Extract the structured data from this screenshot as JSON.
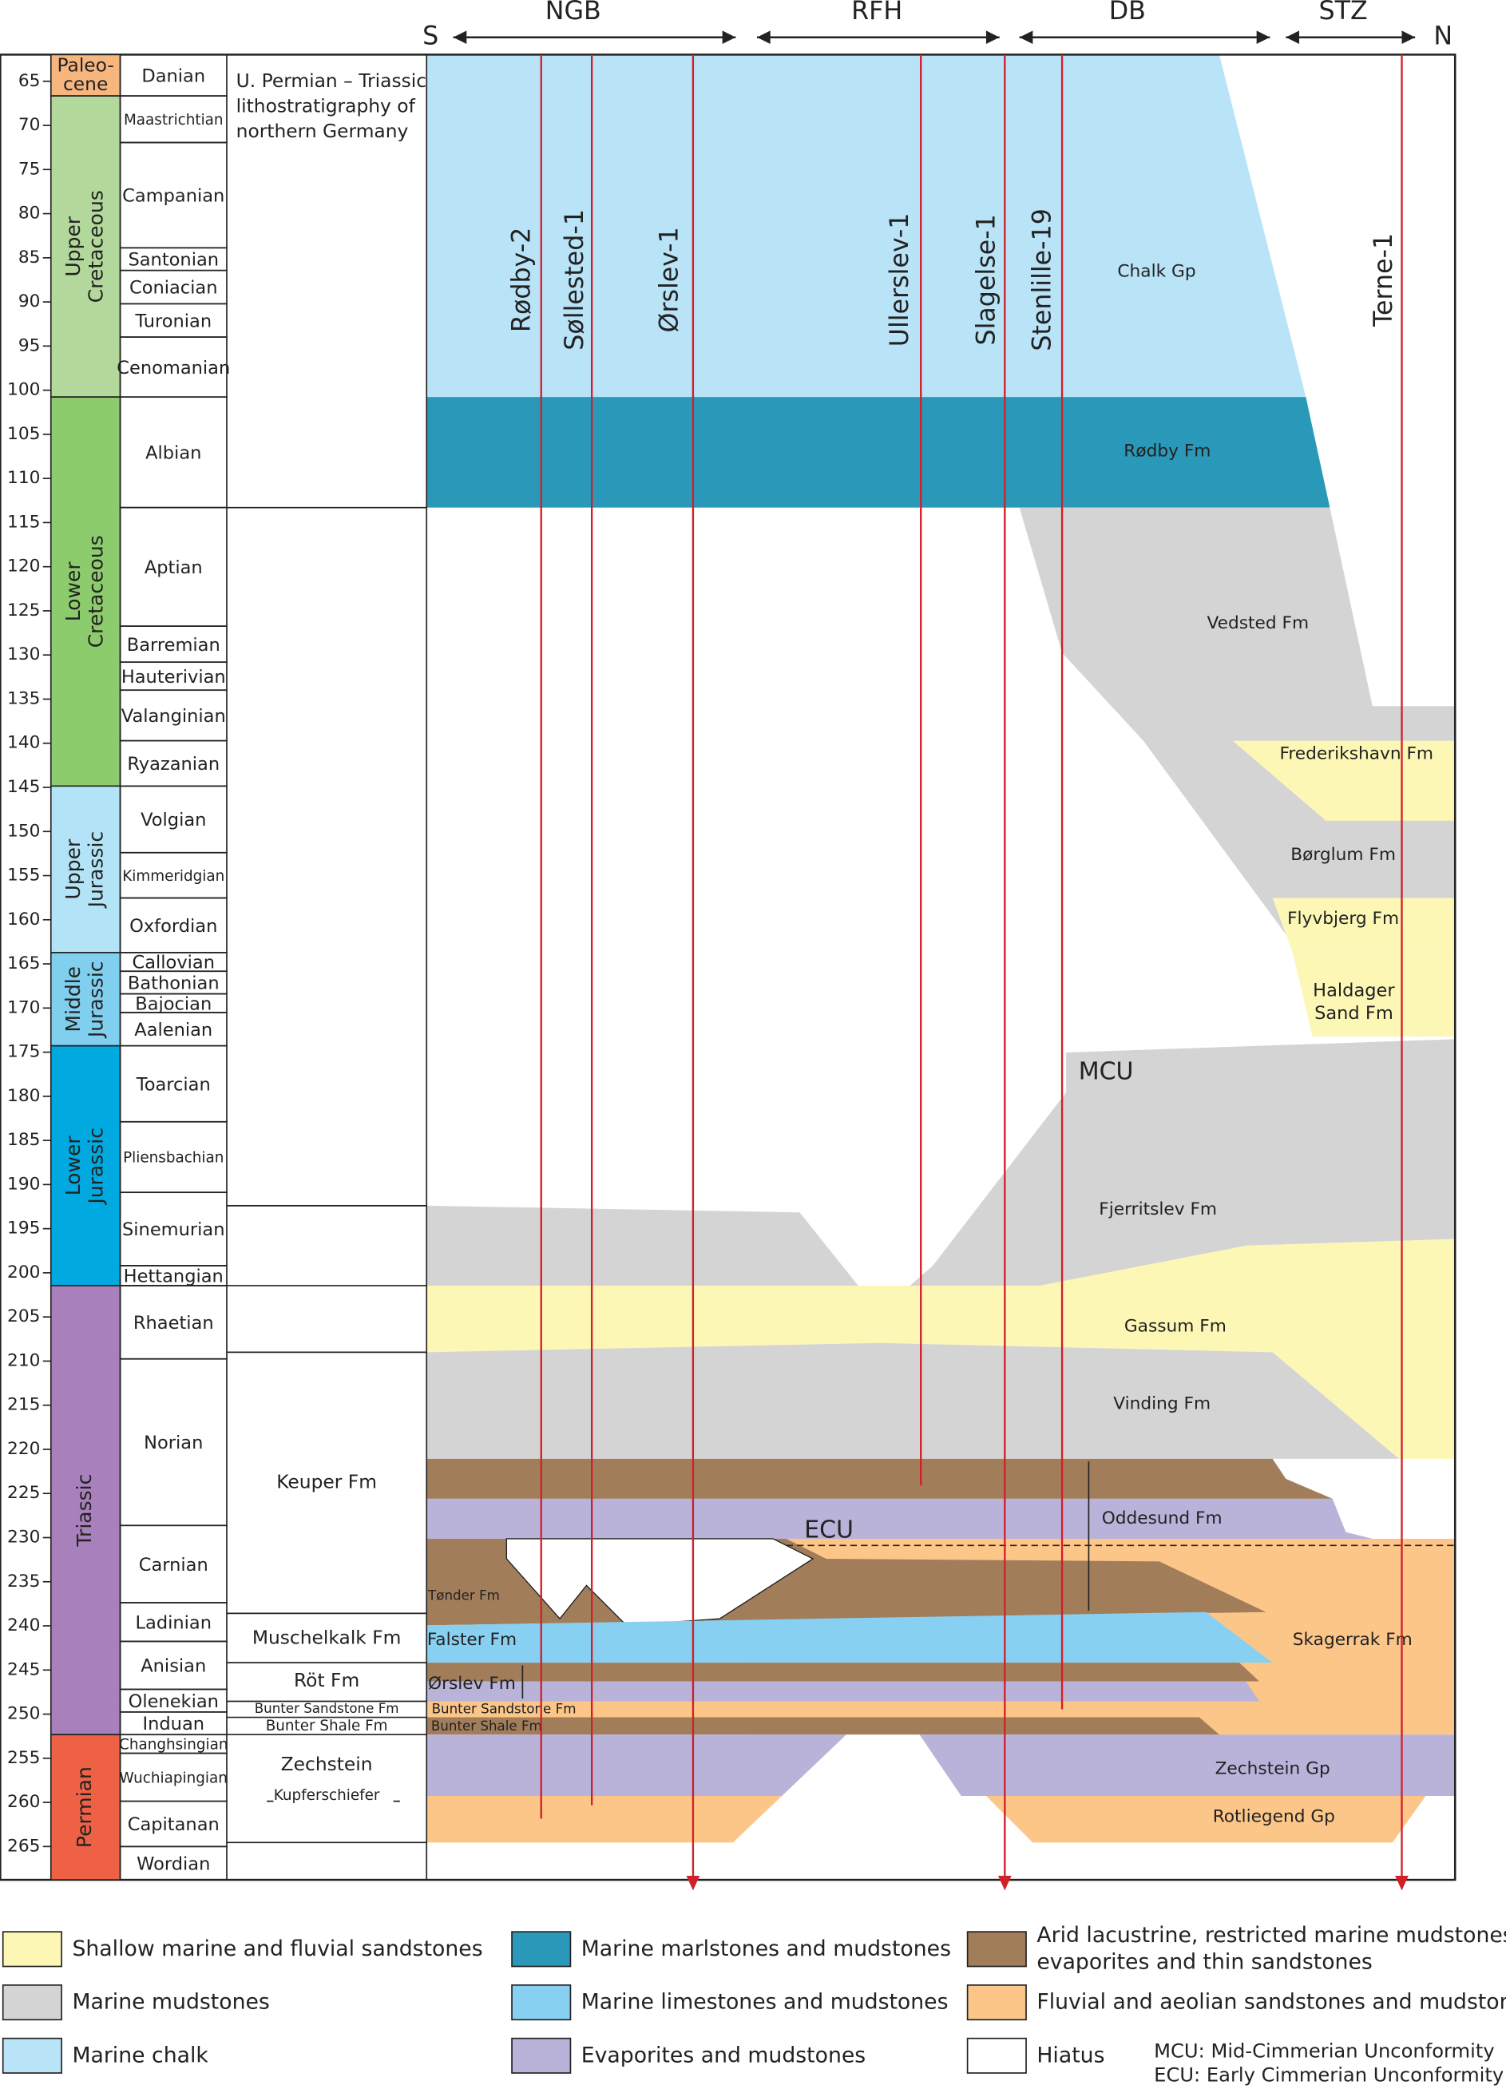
{
  "header": {
    "south": "S",
    "north": "N",
    "regions": [
      "NGB",
      "RFH",
      "DB",
      "STZ"
    ]
  },
  "age_ticks": [
    65,
    70,
    75,
    80,
    85,
    90,
    95,
    100,
    105,
    110,
    115,
    120,
    125,
    130,
    135,
    140,
    145,
    150,
    155,
    160,
    165,
    170,
    175,
    180,
    185,
    190,
    195,
    200,
    205,
    210,
    215,
    220,
    225,
    230,
    235,
    240,
    245,
    250,
    255,
    260,
    265
  ],
  "periods": [
    [
      "Paleo-",
      "cene"
    ],
    [
      "Upper",
      "Cretaceous"
    ],
    [
      "Lower",
      "Cretaceous"
    ],
    [
      "Upper",
      "Jurassic"
    ],
    [
      "Middle",
      "Jurassic"
    ],
    [
      "Lower",
      "Jurassic"
    ],
    [
      "Triassic"
    ],
    [
      "Permian"
    ]
  ],
  "stages": [
    "Danian",
    "Maastrichtian",
    "Campanian",
    "Santonian",
    "Coniacian",
    "Turonian",
    "Cenomanian",
    "Albian",
    "Aptian",
    "Barremian",
    "Hauterivian",
    "Valanginian",
    "Ryazanian",
    "Volgian",
    "Kimmeridgian",
    "Oxfordian",
    "Callovian",
    "Bathonian",
    "Bajocian",
    "Aalenian",
    "Toarcian",
    "Pliensbachian",
    "Sinemurian",
    "Hettangian",
    "Rhaetian",
    "Norian",
    "Carnian",
    "Ladinian",
    "Anisian",
    "Olenekian",
    "Induan",
    "Changhsingian",
    "Wuchiapingian",
    "Capitanan",
    "Wordian"
  ],
  "lithostratigraphy": {
    "title": [
      "U. Permian – Triassic",
      "lithostratigraphy of",
      "northern Germany"
    ],
    "units": [
      "Keuper Fm",
      "Muschelkalk Fm",
      "Röt Fm",
      "Bunter Sandstone Fm",
      "Bunter Shale Fm",
      "Zechstein",
      "Kupferschiefer"
    ]
  },
  "wells": [
    "Rødby-2",
    "Søllested-1",
    "Ørslev-1",
    "Ullerslev-1",
    "Slagelse-1",
    "Stenlille-19",
    "Terne-1"
  ],
  "formations": [
    [
      "Chalk Gp"
    ],
    [
      "Rødby Fm"
    ],
    [
      "Vedsted Fm"
    ],
    [
      "Frederikshavn Fm"
    ],
    [
      "Børglum Fm"
    ],
    [
      "Flyvbjerg Fm"
    ],
    [
      "Haldager",
      "Sand Fm"
    ],
    [
      "Fjerritslev Fm"
    ],
    [
      "Gassum Fm"
    ],
    [
      "Vinding Fm"
    ],
    [
      "Oddesund Fm"
    ],
    [
      "Tønder Fm"
    ],
    [
      "Skagerrak Fm"
    ],
    [
      "Falster Fm"
    ],
    [
      "Ørslev Fm"
    ],
    [
      "Bunter Sandstone Fm"
    ],
    [
      "Bunter Shale Fm"
    ],
    [
      "Zechstein Gp"
    ],
    [
      "Rotliegend Gp"
    ]
  ],
  "unconformities": [
    "MCU",
    "ECU"
  ],
  "legend": [
    [
      "Shallow marine and fluvial sandstones"
    ],
    [
      "Marine mudstones"
    ],
    [
      "Marine chalk"
    ],
    [
      "Marine marlstones and mudstones"
    ],
    [
      "Marine limestones and mudstones"
    ],
    [
      "Evaporites and mudstones"
    ],
    [
      "Arid lacustrine, restricted marine mudstones,",
      "evaporites and thin sandstones"
    ],
    [
      "Fluvial and aeolian sandstones and mudstones"
    ],
    [
      "Hiatus"
    ]
  ],
  "notes": [
    "MCU: Mid-Cimmerian Unconformity",
    "ECU: Early Cimmerian Unconformity"
  ]
}
